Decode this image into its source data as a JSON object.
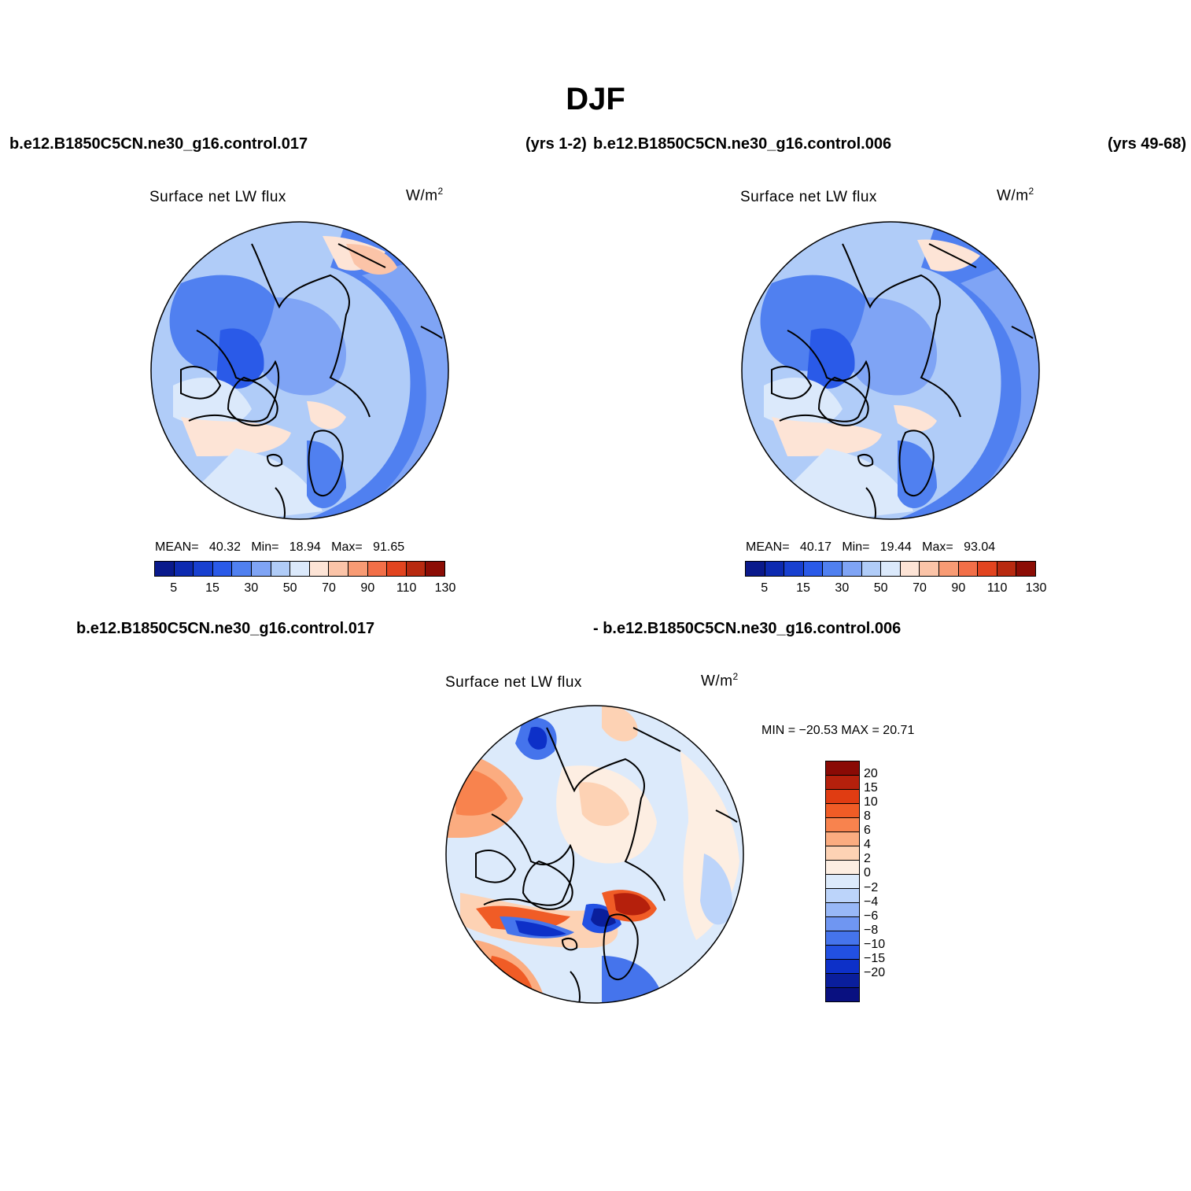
{
  "main_title": "DJF",
  "header": {
    "case1": "b.e12.B1850C5CN.ne30_g16.control.017",
    "years1": "(yrs 1-2)",
    "case2": "b.e12.B1850C5CN.ne30_g16.control.006",
    "years2": "(yrs 49-68)"
  },
  "diff_header": {
    "case1": "b.e12.B1850C5CN.ne30_g16.control.017",
    "case2": "- b.e12.B1850C5CN.ne30_g16.control.006"
  },
  "panels": [
    {
      "title": "Surface net LW flux",
      "units": "W/m",
      "units_sup": "2",
      "mean_label": "MEAN=",
      "mean": "40.32",
      "min_label": "Min=",
      "min": "18.94",
      "max_label": "Max=",
      "max": "91.65"
    },
    {
      "title": "Surface net LW flux",
      "units": "W/m",
      "units_sup": "2",
      "mean_label": "MEAN=",
      "mean": "40.17",
      "min_label": "Min=",
      "min": "19.44",
      "max_label": "Max=",
      "max": "93.04"
    }
  ],
  "diff_panel": {
    "title": "Surface net LW flux",
    "units": "W/m",
    "units_sup": "2",
    "minmax": "MIN = −20.53 MAX =  20.71"
  },
  "colorbar_main": {
    "colors": [
      "#0a1a8c",
      "#0d2ab0",
      "#1840d0",
      "#2a5ae8",
      "#5080f0",
      "#7fa4f5",
      "#b0ccf8",
      "#dbe9fb",
      "#fde4d6",
      "#fbc4a8",
      "#f89b74",
      "#f26f48",
      "#e2441f",
      "#b82a10",
      "#8c0d05"
    ],
    "ticks": [
      "5",
      "15",
      "30",
      "50",
      "70",
      "90",
      "110",
      "130"
    ]
  },
  "colorbar_diff": {
    "colors": [
      "#8a0a05",
      "#b5200c",
      "#e03c12",
      "#f05c26",
      "#f8834e",
      "#fbac80",
      "#fdd2b4",
      "#fdeee2",
      "#dceafb",
      "#bcd4fa",
      "#98b8f7",
      "#6f96f2",
      "#4574ec",
      "#2250e2",
      "#0d30c8",
      "#0a1e9c",
      "#091080"
    ],
    "ticks": [
      "20",
      "15",
      "10",
      "8",
      "6",
      "4",
      "2",
      "0",
      "−2",
      "−4",
      "−6",
      "−8",
      "−10",
      "−15",
      "−20"
    ]
  }
}
